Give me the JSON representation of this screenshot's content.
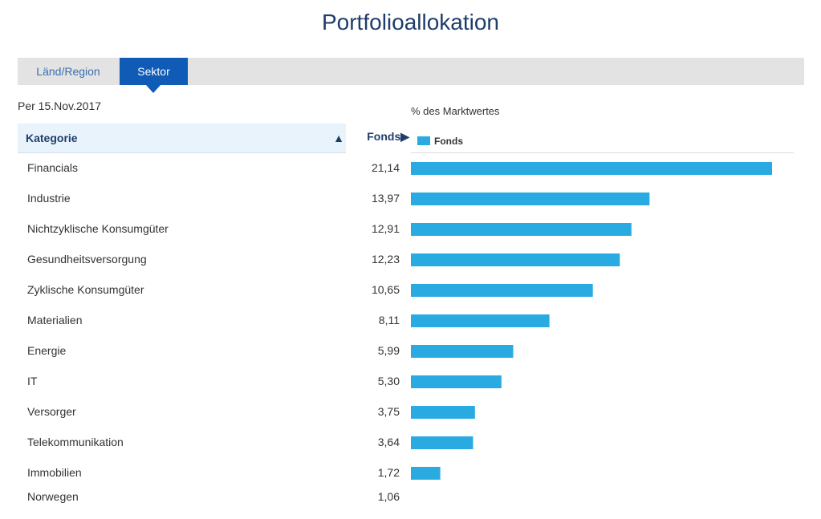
{
  "page": {
    "title": "Portfolioallokation"
  },
  "tabs": [
    {
      "label": "Länd/Region",
      "active": false
    },
    {
      "label": "Sektor",
      "active": true
    }
  ],
  "as_of": "Per 15.Nov.2017",
  "table": {
    "category_header": "Kategorie",
    "fund_header": "Fonds▶",
    "sort_icon": "▲"
  },
  "colors": {
    "bar": "#29abe2",
    "accent": "#0f5bb5",
    "title": "#1f3d6b"
  },
  "chart_data": {
    "type": "bar",
    "orientation": "horizontal",
    "axis_caption": "% des Marktwertes",
    "legend": [
      "Fonds"
    ],
    "legend_position": "top-left",
    "categories": [
      "Financials",
      "Industrie",
      "Nichtzyklische Konsumgüter",
      "Gesundheitsversorgung",
      "Zyklische Konsumgüter",
      "Materialien",
      "Energie",
      "IT",
      "Versorger",
      "Telekommunikation",
      "Immobilien",
      "Norwegen"
    ],
    "value_labels": [
      "21,14",
      "13,97",
      "12,91",
      "12,23",
      "10,65",
      "8,11",
      "5,99",
      "5,30",
      "3,75",
      "3,64",
      "1,72",
      "1,06"
    ],
    "series": [
      {
        "name": "Fonds",
        "values": [
          21.14,
          13.97,
          12.91,
          12.23,
          10.65,
          8.11,
          5.99,
          5.3,
          3.75,
          3.64,
          1.72,
          1.06
        ]
      }
    ]
  }
}
